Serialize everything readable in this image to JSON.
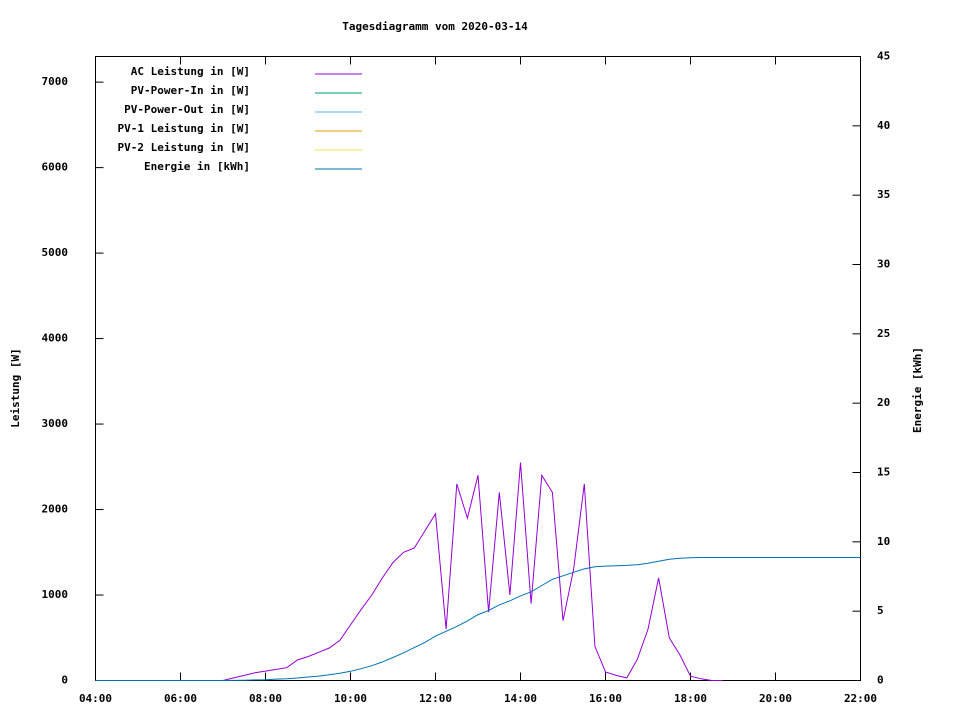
{
  "chart_data": {
    "type": "line",
    "title": "Tagesdiagramm vom 2020-03-14",
    "ylabel": "Leistung [W]",
    "y2label": "Energie [kWh]",
    "legend": "top-left",
    "x": [
      4,
      4.25,
      4.5,
      4.75,
      5,
      5.25,
      5.5,
      5.75,
      6,
      6.25,
      6.5,
      6.75,
      7,
      7.25,
      7.5,
      7.75,
      8,
      8.25,
      8.5,
      8.75,
      9,
      9.25,
      9.5,
      9.75,
      10,
      10.25,
      10.5,
      10.75,
      11,
      11.25,
      11.5,
      11.75,
      12,
      12.25,
      12.5,
      12.75,
      13,
      13.25,
      13.5,
      13.75,
      14,
      14.25,
      14.5,
      14.75,
      15,
      15.25,
      15.5,
      15.75,
      16,
      16.25,
      16.5,
      16.75,
      17,
      17.25,
      17.5,
      17.75,
      18,
      18.25,
      18.5,
      18.75,
      19,
      19.25,
      19.5,
      19.75,
      20,
      20.25,
      20.5,
      20.75,
      21,
      21.25,
      21.5,
      21.75,
      22
    ],
    "xlim": [
      4,
      22
    ],
    "xticks": [
      {
        "value": 4,
        "label": "04:00"
      },
      {
        "value": 6,
        "label": "06:00"
      },
      {
        "value": 8,
        "label": "08:00"
      },
      {
        "value": 10,
        "label": "10:00"
      },
      {
        "value": 12,
        "label": "12:00"
      },
      {
        "value": 14,
        "label": "14:00"
      },
      {
        "value": 16,
        "label": "16:00"
      },
      {
        "value": 18,
        "label": "18:00"
      },
      {
        "value": 20,
        "label": "20:00"
      },
      {
        "value": 22,
        "label": "22:00"
      }
    ],
    "ylim": [
      0,
      7300
    ],
    "yticks": [
      0,
      1000,
      2000,
      3000,
      4000,
      5000,
      6000,
      7000
    ],
    "y2lim": [
      0,
      45
    ],
    "y2ticks": [
      0,
      5,
      10,
      15,
      20,
      25,
      30,
      35,
      40,
      45
    ],
    "series": [
      {
        "name": "AC Leistung in [W]",
        "color": "#9400d3",
        "values": [
          null,
          null,
          null,
          null,
          null,
          null,
          null,
          null,
          null,
          null,
          null,
          null,
          0,
          30,
          60,
          90,
          110,
          130,
          150,
          240,
          280,
          330,
          380,
          470,
          650,
          830,
          1000,
          1200,
          1380,
          1500,
          1550,
          1750,
          1950,
          600,
          2300,
          1900,
          2400,
          800,
          2200,
          1000,
          2550,
          900,
          2400,
          2200,
          700,
          1300,
          2300,
          400,
          100,
          60,
          30,
          250,
          600,
          1200,
          500,
          300,
          50,
          20,
          0,
          0,
          null,
          null,
          null,
          null,
          null,
          null,
          null,
          null,
          null,
          null,
          null,
          null,
          null
        ]
      },
      {
        "name": "PV-Power-In in [W]",
        "color": "#009e73",
        "values": [
          null,
          null,
          null,
          null,
          null,
          null,
          null,
          null,
          null,
          null,
          null,
          null,
          null,
          null,
          null,
          null,
          null,
          null,
          null,
          null,
          null,
          null,
          null,
          null,
          null,
          null,
          null,
          null,
          null,
          null,
          null,
          null,
          null,
          null,
          null,
          null,
          null,
          null,
          null,
          null,
          null,
          null,
          null,
          null,
          null,
          null,
          null,
          null,
          null,
          null,
          null,
          null,
          null,
          null,
          null,
          null,
          null,
          null,
          null,
          null,
          null,
          null,
          null,
          null,
          null,
          null,
          null,
          null,
          null,
          null,
          null,
          null,
          null
        ]
      },
      {
        "name": "PV-Power-Out in [W]",
        "color": "#56b4e9",
        "values": [
          null,
          null,
          null,
          null,
          null,
          null,
          null,
          null,
          null,
          null,
          null,
          null,
          null,
          null,
          null,
          null,
          null,
          null,
          null,
          null,
          null,
          null,
          null,
          null,
          null,
          null,
          null,
          null,
          null,
          null,
          null,
          null,
          null,
          null,
          null,
          null,
          null,
          null,
          null,
          null,
          null,
          null,
          null,
          null,
          null,
          null,
          null,
          null,
          null,
          null,
          null,
          null,
          null,
          null,
          null,
          null,
          null,
          null,
          null,
          null,
          null,
          null,
          null,
          null,
          null,
          null,
          null,
          null,
          null,
          null,
          null,
          null,
          null
        ]
      },
      {
        "name": "PV-1 Leistung in [W]",
        "color": "#e69f00",
        "values": [
          null,
          null,
          null,
          null,
          null,
          null,
          null,
          null,
          null,
          null,
          null,
          null,
          null,
          null,
          null,
          null,
          null,
          null,
          null,
          null,
          null,
          null,
          null,
          null,
          null,
          null,
          null,
          null,
          null,
          null,
          null,
          null,
          null,
          null,
          null,
          null,
          null,
          null,
          null,
          null,
          null,
          null,
          null,
          null,
          null,
          null,
          null,
          null,
          null,
          null,
          null,
          null,
          null,
          null,
          null,
          null,
          null,
          null,
          null,
          null,
          null,
          null,
          null,
          null,
          null,
          null,
          null,
          null,
          null,
          null,
          null,
          null,
          null
        ]
      },
      {
        "name": "PV-2 Leistung in [W]",
        "color": "#f0e442",
        "values": [
          null,
          null,
          null,
          null,
          null,
          null,
          null,
          null,
          null,
          null,
          null,
          null,
          null,
          null,
          null,
          null,
          null,
          null,
          null,
          null,
          null,
          null,
          null,
          null,
          null,
          null,
          null,
          null,
          null,
          null,
          null,
          null,
          null,
          null,
          null,
          null,
          null,
          null,
          null,
          null,
          null,
          null,
          null,
          null,
          null,
          null,
          null,
          null,
          null,
          null,
          null,
          null,
          null,
          null,
          null,
          null,
          null,
          null,
          null,
          null,
          null,
          null,
          null,
          null,
          null,
          null,
          null,
          null,
          null,
          null,
          null,
          null,
          null
        ]
      },
      {
        "name": "Energie in [kWh]",
        "color": "#0072b2",
        "axis": "y2",
        "values": [
          0,
          0,
          0,
          0,
          0,
          0,
          0,
          0,
          0,
          0,
          0,
          0,
          0,
          0.01,
          0.02,
          0.04,
          0.06,
          0.1,
          0.13,
          0.18,
          0.25,
          0.32,
          0.41,
          0.52,
          0.66,
          0.85,
          1.07,
          1.34,
          1.66,
          2.0,
          2.37,
          2.75,
          3.2,
          3.55,
          3.9,
          4.3,
          4.75,
          5.05,
          5.45,
          5.75,
          6.1,
          6.4,
          6.85,
          7.3,
          7.55,
          7.8,
          8.05,
          8.2,
          8.25,
          8.27,
          8.3,
          8.35,
          8.45,
          8.6,
          8.75,
          8.82,
          8.85,
          8.87,
          8.87,
          8.87,
          8.87,
          8.87,
          8.87,
          8.87,
          8.87,
          8.87,
          8.87,
          8.87,
          8.87,
          8.87,
          8.87,
          8.87,
          8.87
        ]
      }
    ]
  }
}
